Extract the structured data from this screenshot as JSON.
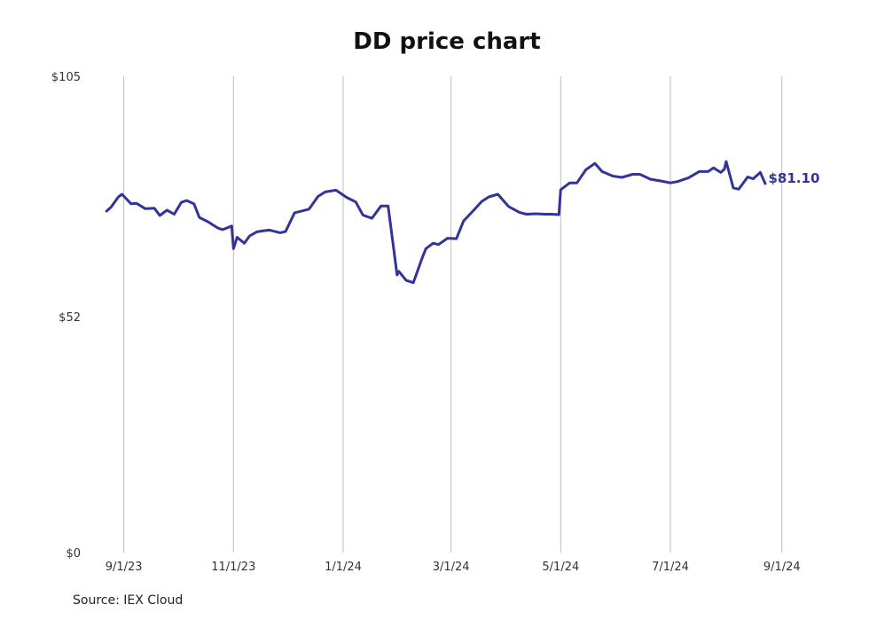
{
  "chart_data": {
    "type": "line",
    "title": "DD price chart",
    "ylim": [
      0,
      105
    ],
    "y_ticks": [
      "$105",
      "$52",
      "$0"
    ],
    "x_ticks": [
      "9/1/23",
      "11/1/23",
      "1/1/24",
      "3/1/24",
      "5/1/24",
      "7/1/24",
      "9/1/24"
    ],
    "grid": "vertical",
    "color": "#333399",
    "end_value_label": "$81.10",
    "series": [
      {
        "x": [
          "2023-08-22",
          "2023-08-25",
          "2023-08-29",
          "2023-08-31",
          "2023-09-05",
          "2023-09-08",
          "2023-09-13",
          "2023-09-18",
          "2023-09-21",
          "2023-09-25",
          "2023-09-29",
          "2023-10-03",
          "2023-10-06",
          "2023-10-10",
          "2023-10-13",
          "2023-10-18",
          "2023-10-23",
          "2023-10-26",
          "2023-10-31",
          "2023-11-01",
          "2023-11-03",
          "2023-11-07",
          "2023-11-10",
          "2023-11-14",
          "2023-11-17",
          "2023-11-21",
          "2023-11-27",
          "2023-11-30",
          "2023-12-05",
          "2023-12-08",
          "2023-12-13",
          "2023-12-18",
          "2023-12-22",
          "2023-12-28",
          "2024-01-03",
          "2024-01-08",
          "2024-01-12",
          "2024-01-17",
          "2024-01-22",
          "2024-01-26",
          "2024-01-31",
          "2024-02-01",
          "2024-02-05",
          "2024-02-09",
          "2024-02-14",
          "2024-02-16",
          "2024-02-20",
          "2024-02-23",
          "2024-02-28",
          "2024-03-04",
          "2024-03-08",
          "2024-03-13",
          "2024-03-18",
          "2024-03-22",
          "2024-03-27",
          "2024-04-02",
          "2024-04-08",
          "2024-04-12",
          "2024-04-17",
          "2024-04-22",
          "2024-04-26",
          "2024-04-30",
          "2024-05-01",
          "2024-05-06",
          "2024-05-10",
          "2024-05-15",
          "2024-05-20",
          "2024-05-24",
          "2024-05-30",
          "2024-06-04",
          "2024-06-10",
          "2024-06-14",
          "2024-06-20",
          "2024-06-26",
          "2024-07-01",
          "2024-07-05",
          "2024-07-11",
          "2024-07-17",
          "2024-07-22",
          "2024-07-25",
          "2024-07-29",
          "2024-07-31",
          "2024-08-01",
          "2024-08-05",
          "2024-08-08",
          "2024-08-13",
          "2024-08-16",
          "2024-08-20",
          "2024-08-23"
        ],
        "values": [
          75.1,
          76.2,
          78.4,
          79.0,
          76.9,
          77.0,
          75.8,
          75.9,
          74.3,
          75.5,
          74.6,
          77.2,
          77.6,
          76.9,
          73.9,
          72.9,
          71.6,
          71.2,
          72.0,
          67.0,
          69.5,
          68.2,
          69.8,
          70.7,
          70.9,
          71.1,
          70.5,
          70.8,
          74.9,
          75.2,
          75.7,
          78.5,
          79.5,
          79.9,
          78.3,
          77.3,
          74.4,
          73.7,
          76.4,
          76.4,
          61.2,
          62.0,
          60.0,
          59.5,
          65.0,
          67.0,
          68.2,
          67.9,
          69.3,
          69.2,
          73.1,
          75.2,
          77.4,
          78.4,
          79.0,
          76.3,
          75.0,
          74.6,
          74.7,
          74.6,
          74.6,
          74.5,
          80.0,
          81.5,
          81.5,
          84.4,
          85.8,
          84.0,
          83.0,
          82.7,
          83.4,
          83.4,
          82.3,
          81.9,
          81.5,
          81.8,
          82.6,
          84.0,
          84.0,
          84.8,
          83.8,
          84.5,
          86.2,
          80.4,
          80.1,
          82.8,
          82.4,
          83.8,
          81.1
        ]
      }
    ]
  },
  "source": "Source: IEX Cloud"
}
